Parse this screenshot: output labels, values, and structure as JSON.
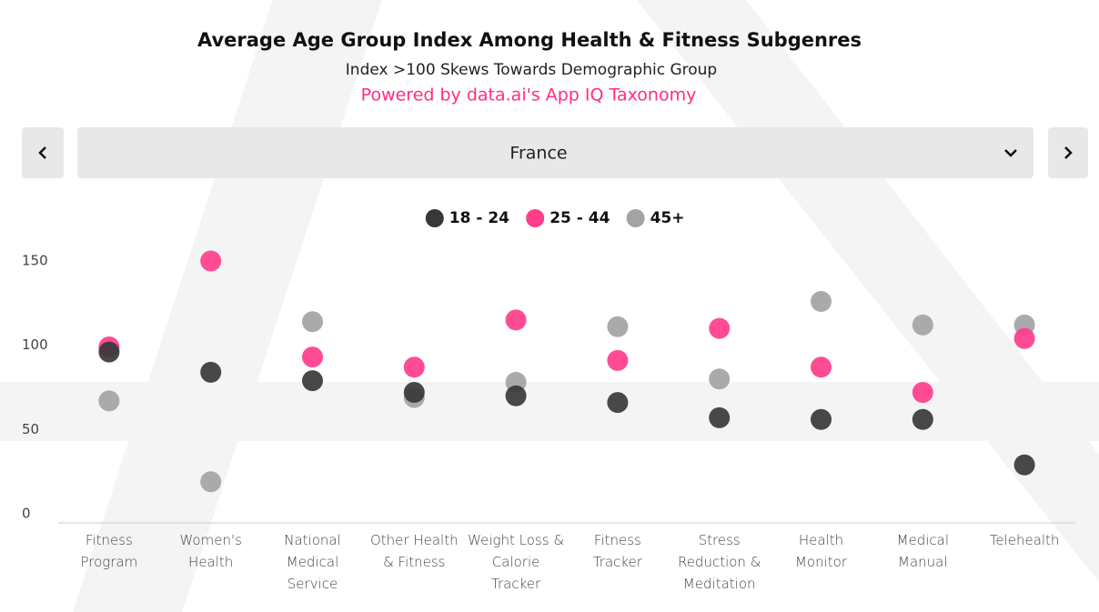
{
  "chart_data": {
    "type": "scatter",
    "title": "Average Age Group Index Among Health &  Fitness Subgenres",
    "subtitle": "Index  >100 Skews Towards Demographic Group",
    "source": "Powered by data.ai's App IQ Taxonomy",
    "selector": "France",
    "categories": [
      "Fitness Program",
      "Women's Health",
      "National Medical Service",
      "Other Health & Fitness",
      "Weight Loss & Calorie Tracker",
      "Fitness Tracker",
      "Stress Reduction & Meditation",
      "Health Monitor",
      "Medical Manual",
      "Telehealth"
    ],
    "series": [
      {
        "name": "18 - 24",
        "color": "#383838",
        "values": [
          96,
          84,
          79,
          72,
          70,
          66,
          57,
          56,
          56,
          29
        ]
      },
      {
        "name": "25 - 44",
        "color": "#ff3d8b",
        "values": [
          99,
          150,
          93,
          87,
          115,
          91,
          110,
          87,
          72,
          104
        ]
      },
      {
        "name": "45+",
        "color": "#a3a3a3",
        "values": [
          67,
          19,
          114,
          69,
          78,
          111,
          80,
          126,
          112,
          112
        ]
      }
    ],
    "ylim": [
      0,
      150
    ],
    "yticks": [
      0,
      50,
      100,
      150
    ]
  }
}
